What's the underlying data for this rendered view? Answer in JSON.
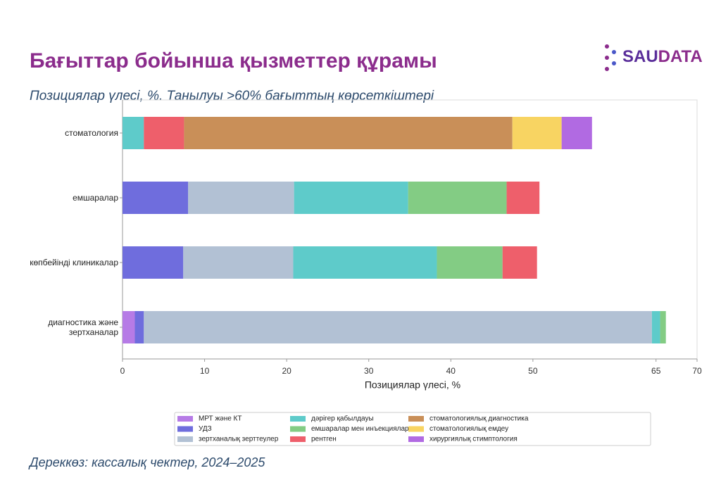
{
  "brand": {
    "logo_left": "SAU",
    "logo_right": "DATA"
  },
  "footer": "Дереккөз: кассалық чектер, 2024–2025",
  "chart_data": {
    "type": "stacked-barh",
    "title": "Бағыттар бойынша қызметтер құрамы",
    "subtitle": "Позициялар үлесі, %. Танылуы >60% бағыттың көрсеткіштері",
    "x_label": "Позициялар үлесі, %",
    "categories": [
      "стоматология",
      "емшаралар",
      "көпбейінді клиникалар",
      "диагностика және зертханалар"
    ],
    "xlim": [
      0,
      70
    ],
    "xticks": [
      0,
      10,
      20,
      30,
      40,
      50,
      65,
      70
    ],
    "legend": "bottom",
    "series": [
      {
        "name": "МРТ және КТ",
        "color": "#b67be6",
        "values": [
          null,
          null,
          null,
          1.5
        ]
      },
      {
        "name": "УДЗ",
        "color": "#6f6ddd",
        "values": [
          null,
          8.0,
          7.4,
          1.1
        ]
      },
      {
        "name": "зертханалық зерттеулер",
        "color": "#b2c1d4",
        "values": [
          null,
          12.9,
          13.4,
          61.9
        ]
      },
      {
        "name": "дәрігер қабылдауы",
        "color": "#5ecbca",
        "values": [
          2.6,
          13.9,
          17.5,
          1.0
        ]
      },
      {
        "name": "емшаралар мен инъекциялар",
        "color": "#83cc84",
        "values": [
          null,
          12.0,
          8.0,
          0.7
        ]
      },
      {
        "name": "рентген",
        "color": "#ee5f6b",
        "values": [
          4.9,
          4.0,
          4.2,
          null
        ]
      },
      {
        "name": "стоматологиялық диагностика",
        "color": "#c98f58",
        "values": [
          40.0,
          null,
          null,
          null
        ]
      },
      {
        "name": "стоматологиялық емдеу",
        "color": "#f8d462",
        "values": [
          6.0,
          null,
          null,
          null
        ]
      },
      {
        "name": "хирургиялық стимптология",
        "color": "#b16ae2",
        "values": [
          3.7,
          null,
          null,
          null
        ]
      }
    ]
  }
}
